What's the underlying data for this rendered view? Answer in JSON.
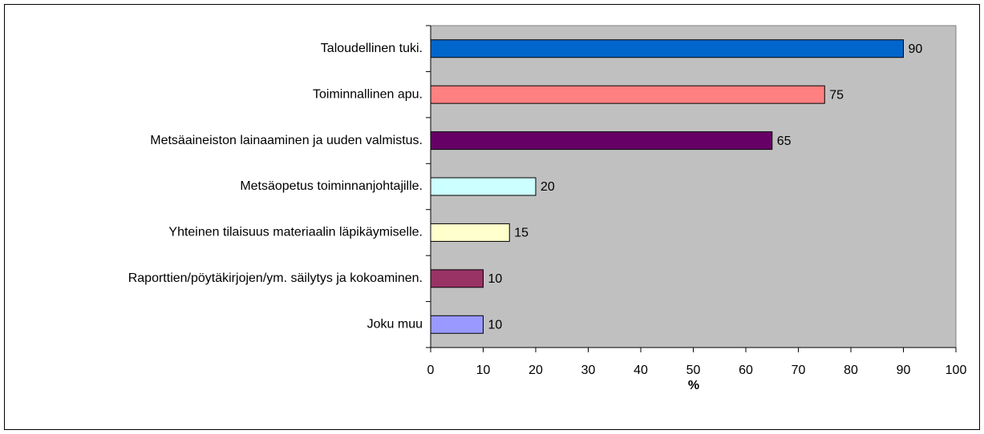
{
  "chart_data": {
    "type": "bar",
    "orientation": "horizontal",
    "categories": [
      "Taloudellinen tuki.",
      "Toiminnallinen apu.",
      "Metsäaineiston lainaaminen ja uuden valmistus.",
      "Metsäopetus toiminnanjohtajille.",
      "Yhteinen tilaisuus materiaalin läpikäymiselle.",
      "Raporttien/pöytäkirjojen/ym. säilytys ja kokoaminen.",
      "Joku muu"
    ],
    "values": [
      90,
      75,
      65,
      20,
      15,
      10,
      10
    ],
    "colors": [
      "#0066cc",
      "#ff8080",
      "#660066",
      "#ccffff",
      "#ffffcc",
      "#993366",
      "#9999ff"
    ],
    "x_label": "%",
    "xlim": [
      0,
      100
    ],
    "xticks": [
      0,
      10,
      20,
      30,
      40,
      50,
      60,
      70,
      80,
      90,
      100
    ],
    "grid": false,
    "plot_background": "#c0c0c0"
  }
}
